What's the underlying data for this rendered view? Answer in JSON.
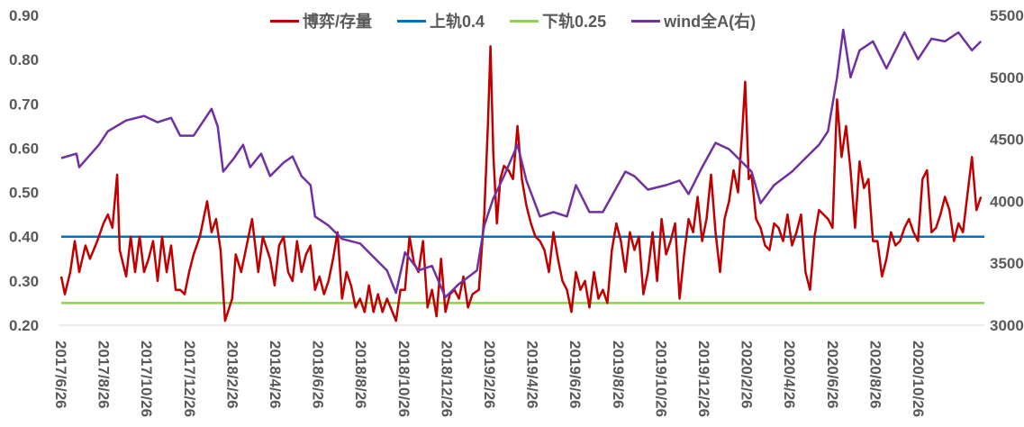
{
  "chart_data": {
    "type": "line",
    "title": "",
    "x_unit": "months since 2017/6/26",
    "xlim": [
      0,
      43.1
    ],
    "x_tick_labels": [
      "2017/6/26",
      "2017/8/26",
      "2017/10/26",
      "2017/12/26",
      "2018/2/26",
      "2018/4/26",
      "2018/6/26",
      "2018/8/26",
      "2018/10/26",
      "2018/12/26",
      "2019/2/26",
      "2019/4/26",
      "2019/6/26",
      "2019/8/26",
      "2019/10/26",
      "2019/12/26",
      "2020/2/26",
      "2020/4/26",
      "2020/6/26",
      "2020/8/26",
      "2020/10/26"
    ],
    "y_left": {
      "lim": [
        0.2,
        0.9
      ],
      "ticks": [
        "0.20",
        "0.30",
        "0.40",
        "0.50",
        "0.60",
        "0.70",
        "0.80",
        "0.90"
      ]
    },
    "y_right": {
      "lim": [
        3000,
        5500
      ],
      "ticks": [
        "3000",
        "3500",
        "4000",
        "4500",
        "5000",
        "5500"
      ]
    },
    "legend_position": "top",
    "series": [
      {
        "name": "博弈/存量",
        "axis": "left",
        "color": "#C00000",
        "points": [
          [
            0,
            0.31
          ],
          [
            0.17,
            0.27
          ],
          [
            0.42,
            0.32
          ],
          [
            0.63,
            0.39
          ],
          [
            0.84,
            0.32
          ],
          [
            1.13,
            0.38
          ],
          [
            1.34,
            0.35
          ],
          [
            1.68,
            0.39
          ],
          [
            1.97,
            0.43
          ],
          [
            2.18,
            0.45
          ],
          [
            2.39,
            0.42
          ],
          [
            2.61,
            0.54
          ],
          [
            2.73,
            0.37
          ],
          [
            3.03,
            0.31
          ],
          [
            3.24,
            0.4
          ],
          [
            3.45,
            0.32
          ],
          [
            3.66,
            0.4
          ],
          [
            3.87,
            0.32
          ],
          [
            4.08,
            0.35
          ],
          [
            4.29,
            0.39
          ],
          [
            4.5,
            0.3
          ],
          [
            4.71,
            0.4
          ],
          [
            4.92,
            0.32
          ],
          [
            5.13,
            0.38
          ],
          [
            5.34,
            0.28
          ],
          [
            5.55,
            0.28
          ],
          [
            5.76,
            0.27
          ],
          [
            5.97,
            0.32
          ],
          [
            6.18,
            0.36
          ],
          [
            6.47,
            0.4
          ],
          [
            6.81,
            0.48
          ],
          [
            7.02,
            0.41
          ],
          [
            7.23,
            0.44
          ],
          [
            7.44,
            0.37
          ],
          [
            7.65,
            0.21
          ],
          [
            7.98,
            0.26
          ],
          [
            8.15,
            0.36
          ],
          [
            8.4,
            0.32
          ],
          [
            8.7,
            0.39
          ],
          [
            8.91,
            0.44
          ],
          [
            9.2,
            0.32
          ],
          [
            9.41,
            0.4
          ],
          [
            9.75,
            0.35
          ],
          [
            9.96,
            0.29
          ],
          [
            10.17,
            0.38
          ],
          [
            10.38,
            0.4
          ],
          [
            10.59,
            0.32
          ],
          [
            10.8,
            0.3
          ],
          [
            11.01,
            0.39
          ],
          [
            11.22,
            0.32
          ],
          [
            11.43,
            0.36
          ],
          [
            11.64,
            0.38
          ],
          [
            11.85,
            0.28
          ],
          [
            12.06,
            0.31
          ],
          [
            12.27,
            0.27
          ],
          [
            12.48,
            0.3
          ],
          [
            12.69,
            0.35
          ],
          [
            12.9,
            0.41
          ],
          [
            13.11,
            0.26
          ],
          [
            13.32,
            0.32
          ],
          [
            13.53,
            0.29
          ],
          [
            13.74,
            0.24
          ],
          [
            13.95,
            0.26
          ],
          [
            14.16,
            0.23
          ],
          [
            14.37,
            0.29
          ],
          [
            14.58,
            0.23
          ],
          [
            14.79,
            0.27
          ],
          [
            15.0,
            0.23
          ],
          [
            15.21,
            0.26
          ],
          [
            15.63,
            0.21
          ],
          [
            15.84,
            0.28
          ],
          [
            16.05,
            0.28
          ],
          [
            16.26,
            0.4
          ],
          [
            16.47,
            0.34
          ],
          [
            16.68,
            0.32
          ],
          [
            16.89,
            0.39
          ],
          [
            17.1,
            0.24
          ],
          [
            17.31,
            0.28
          ],
          [
            17.52,
            0.22
          ],
          [
            17.73,
            0.35
          ],
          [
            17.94,
            0.23
          ],
          [
            18.15,
            0.27
          ],
          [
            18.36,
            0.28
          ],
          [
            18.57,
            0.26
          ],
          [
            18.78,
            0.31
          ],
          [
            18.99,
            0.24
          ],
          [
            19.2,
            0.27
          ],
          [
            19.5,
            0.28
          ],
          [
            19.75,
            0.45
          ],
          [
            19.92,
            0.65
          ],
          [
            20.04,
            0.83
          ],
          [
            20.17,
            0.59
          ],
          [
            20.34,
            0.43
          ],
          [
            20.5,
            0.53
          ],
          [
            20.67,
            0.56
          ],
          [
            20.88,
            0.55
          ],
          [
            21.09,
            0.53
          ],
          [
            21.3,
            0.65
          ],
          [
            21.51,
            0.53
          ],
          [
            21.72,
            0.47
          ],
          [
            21.93,
            0.43
          ],
          [
            22.14,
            0.4
          ],
          [
            22.35,
            0.39
          ],
          [
            22.56,
            0.37
          ],
          [
            22.77,
            0.32
          ],
          [
            22.98,
            0.41
          ],
          [
            23.19,
            0.35
          ],
          [
            23.4,
            0.3
          ],
          [
            23.61,
            0.28
          ],
          [
            23.82,
            0.23
          ],
          [
            24.03,
            0.32
          ],
          [
            24.24,
            0.28
          ],
          [
            24.45,
            0.3
          ],
          [
            24.66,
            0.24
          ],
          [
            24.87,
            0.32
          ],
          [
            25.08,
            0.26
          ],
          [
            25.29,
            0.28
          ],
          [
            25.5,
            0.25
          ],
          [
            25.71,
            0.37
          ],
          [
            25.92,
            0.43
          ],
          [
            26.13,
            0.39
          ],
          [
            26.34,
            0.32
          ],
          [
            26.55,
            0.41
          ],
          [
            26.76,
            0.37
          ],
          [
            26.97,
            0.4
          ],
          [
            27.18,
            0.27
          ],
          [
            27.39,
            0.32
          ],
          [
            27.61,
            0.41
          ],
          [
            27.82,
            0.3
          ],
          [
            28.03,
            0.44
          ],
          [
            28.24,
            0.36
          ],
          [
            28.45,
            0.39
          ],
          [
            28.66,
            0.43
          ],
          [
            28.87,
            0.26
          ],
          [
            29.08,
            0.36
          ],
          [
            29.29,
            0.44
          ],
          [
            29.5,
            0.41
          ],
          [
            29.71,
            0.49
          ],
          [
            29.92,
            0.39
          ],
          [
            30.13,
            0.44
          ],
          [
            30.34,
            0.54
          ],
          [
            30.55,
            0.41
          ],
          [
            30.76,
            0.32
          ],
          [
            30.97,
            0.44
          ],
          [
            31.18,
            0.48
          ],
          [
            31.39,
            0.55
          ],
          [
            31.6,
            0.5
          ],
          [
            31.81,
            0.65
          ],
          [
            31.93,
            0.75
          ],
          [
            32.1,
            0.53
          ],
          [
            32.23,
            0.54
          ],
          [
            32.44,
            0.44
          ],
          [
            32.65,
            0.42
          ],
          [
            32.86,
            0.38
          ],
          [
            33.07,
            0.37
          ],
          [
            33.28,
            0.43
          ],
          [
            33.49,
            0.42
          ],
          [
            33.7,
            0.39
          ],
          [
            33.91,
            0.45
          ],
          [
            34.12,
            0.38
          ],
          [
            34.33,
            0.41
          ],
          [
            34.54,
            0.45
          ],
          [
            34.75,
            0.32
          ],
          [
            34.96,
            0.28
          ],
          [
            35.17,
            0.4
          ],
          [
            35.38,
            0.46
          ],
          [
            35.59,
            0.45
          ],
          [
            35.8,
            0.44
          ],
          [
            36.01,
            0.42
          ],
          [
            36.22,
            0.71
          ],
          [
            36.43,
            0.58
          ],
          [
            36.64,
            0.65
          ],
          [
            36.85,
            0.55
          ],
          [
            37.06,
            0.42
          ],
          [
            37.27,
            0.57
          ],
          [
            37.48,
            0.51
          ],
          [
            37.69,
            0.53
          ],
          [
            37.9,
            0.39
          ],
          [
            38.11,
            0.39
          ],
          [
            38.32,
            0.31
          ],
          [
            38.53,
            0.35
          ],
          [
            38.74,
            0.41
          ],
          [
            38.95,
            0.38
          ],
          [
            39.16,
            0.39
          ],
          [
            39.37,
            0.42
          ],
          [
            39.58,
            0.44
          ],
          [
            39.79,
            0.41
          ],
          [
            40.0,
            0.39
          ],
          [
            40.21,
            0.53
          ],
          [
            40.42,
            0.55
          ],
          [
            40.63,
            0.41
          ],
          [
            40.84,
            0.42
          ],
          [
            41.05,
            0.45
          ],
          [
            41.26,
            0.49
          ],
          [
            41.47,
            0.46
          ],
          [
            41.68,
            0.39
          ],
          [
            41.89,
            0.43
          ],
          [
            42.1,
            0.41
          ],
          [
            42.52,
            0.58
          ],
          [
            42.73,
            0.46
          ],
          [
            42.94,
            0.49
          ]
        ]
      },
      {
        "name": "上轨0.4",
        "axis": "left",
        "color": "#0070C0",
        "points": [
          [
            0,
            0.4
          ],
          [
            43.1,
            0.4
          ]
        ]
      },
      {
        "name": "下轨0.25",
        "axis": "left",
        "color": "#92D050",
        "points": [
          [
            0,
            0.25
          ],
          [
            43.1,
            0.25
          ]
        ]
      },
      {
        "name": "wind全A(右)",
        "axis": "right",
        "color": "#7030A0",
        "points": [
          [
            0,
            4348
          ],
          [
            0.71,
            4384
          ],
          [
            0.84,
            4275
          ],
          [
            1.76,
            4456
          ],
          [
            2.18,
            4565
          ],
          [
            3.03,
            4652
          ],
          [
            3.87,
            4688
          ],
          [
            4.5,
            4637
          ],
          [
            5.13,
            4673
          ],
          [
            5.55,
            4529
          ],
          [
            6.18,
            4529
          ],
          [
            7.02,
            4746
          ],
          [
            7.31,
            4601
          ],
          [
            7.56,
            4239
          ],
          [
            8.07,
            4348
          ],
          [
            8.49,
            4456
          ],
          [
            8.82,
            4275
          ],
          [
            9.33,
            4384
          ],
          [
            9.75,
            4203
          ],
          [
            10.38,
            4312
          ],
          [
            10.8,
            4362
          ],
          [
            11.22,
            4203
          ],
          [
            11.64,
            4130
          ],
          [
            11.85,
            3877
          ],
          [
            12.48,
            3804
          ],
          [
            13.11,
            3696
          ],
          [
            13.95,
            3659
          ],
          [
            14.58,
            3551
          ],
          [
            15.21,
            3442
          ],
          [
            15.63,
            3261
          ],
          [
            16.05,
            3587
          ],
          [
            16.68,
            3442
          ],
          [
            17.31,
            3478
          ],
          [
            17.94,
            3225
          ],
          [
            18.57,
            3333
          ],
          [
            19.41,
            3442
          ],
          [
            19.75,
            3804
          ],
          [
            20.17,
            4022
          ],
          [
            20.67,
            4203
          ],
          [
            21.3,
            4456
          ],
          [
            21.72,
            4167
          ],
          [
            22.35,
            3877
          ],
          [
            22.98,
            3913
          ],
          [
            23.61,
            3877
          ],
          [
            24.03,
            4130
          ],
          [
            24.66,
            3913
          ],
          [
            25.29,
            3913
          ],
          [
            26.34,
            4239
          ],
          [
            26.76,
            4203
          ],
          [
            27.39,
            4094
          ],
          [
            28.24,
            4130
          ],
          [
            28.87,
            4167
          ],
          [
            29.29,
            4058
          ],
          [
            29.92,
            4275
          ],
          [
            30.55,
            4471
          ],
          [
            31.18,
            4420
          ],
          [
            31.6,
            4348
          ],
          [
            32.23,
            4239
          ],
          [
            32.65,
            3985
          ],
          [
            33.28,
            4130
          ],
          [
            34.12,
            4239
          ],
          [
            34.75,
            4348
          ],
          [
            35.38,
            4456
          ],
          [
            35.8,
            4565
          ],
          [
            36.22,
            4999
          ],
          [
            36.51,
            5384
          ],
          [
            36.85,
            4999
          ],
          [
            37.27,
            5217
          ],
          [
            37.9,
            5290
          ],
          [
            38.53,
            5072
          ],
          [
            38.95,
            5217
          ],
          [
            39.16,
            5290
          ],
          [
            39.37,
            5362
          ],
          [
            40.0,
            5145
          ],
          [
            40.63,
            5311
          ],
          [
            41.26,
            5290
          ],
          [
            41.89,
            5362
          ],
          [
            42.52,
            5217
          ],
          [
            42.94,
            5290
          ]
        ]
      }
    ]
  }
}
